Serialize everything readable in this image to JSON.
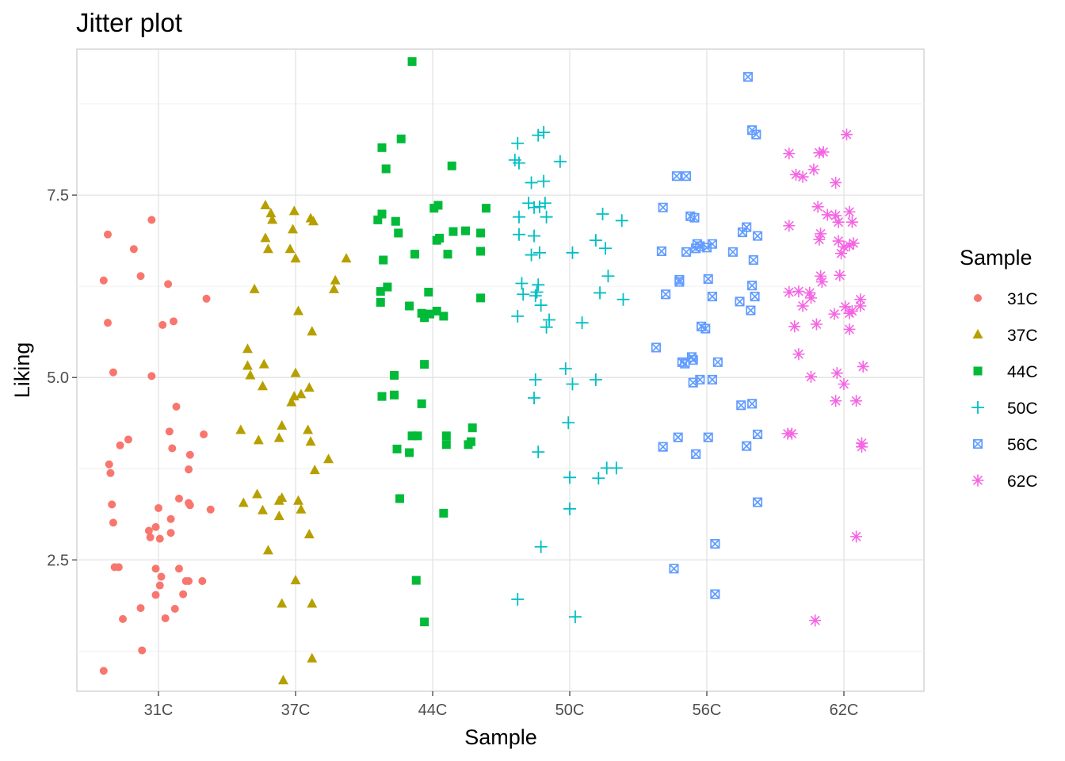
{
  "chart_data": {
    "type": "scatter",
    "title": "Jitter plot",
    "xlabel": "Sample",
    "ylabel": "Liking",
    "categories": [
      "31C",
      "37C",
      "44C",
      "50C",
      "56C",
      "62C"
    ],
    "ylim": [
      0.7,
      9.5
    ],
    "yticks": [
      2.5,
      5.0,
      7.5
    ],
    "ytick_labels": [
      "2.5",
      "5.0",
      "7.5"
    ],
    "grid": true,
    "legend": {
      "title": "Sample",
      "position": "right"
    },
    "series": [
      {
        "name": "31C",
        "color": "#F8766D",
        "shape": "circle",
        "points": [
          [
            -0.4,
            6.33
          ],
          [
            -0.37,
            6.96
          ],
          [
            -0.37,
            5.75
          ],
          [
            -0.33,
            5.07
          ],
          [
            -0.18,
            6.76
          ],
          [
            -0.13,
            6.39
          ],
          [
            -0.05,
            7.16
          ],
          [
            0.07,
            6.28
          ],
          [
            0.11,
            5.77
          ],
          [
            0.35,
            6.08
          ],
          [
            0.03,
            5.72
          ],
          [
            -0.05,
            5.02
          ],
          [
            -0.36,
            3.81
          ],
          [
            -0.35,
            3.69
          ],
          [
            -0.34,
            3.26
          ],
          [
            -0.33,
            3.01
          ],
          [
            -0.28,
            4.07
          ],
          [
            -0.22,
            4.15
          ],
          [
            -0.32,
            2.4
          ],
          [
            -0.29,
            2.4
          ],
          [
            -0.26,
            1.69
          ],
          [
            -0.4,
            0.98
          ],
          [
            -0.12,
            1.26
          ],
          [
            -0.13,
            1.84
          ],
          [
            -0.07,
            2.9
          ],
          [
            -0.06,
            2.81
          ],
          [
            -0.02,
            2.95
          ],
          [
            0.0,
            3.21
          ],
          [
            0.01,
            2.79
          ],
          [
            -0.02,
            2.38
          ],
          [
            0.02,
            2.27
          ],
          [
            0.01,
            2.15
          ],
          [
            -0.02,
            2.02
          ],
          [
            0.05,
            1.7
          ],
          [
            0.09,
            2.87
          ],
          [
            0.09,
            3.06
          ],
          [
            0.12,
            1.83
          ],
          [
            0.13,
            4.6
          ],
          [
            0.08,
            4.26
          ],
          [
            0.1,
            4.03
          ],
          [
            0.15,
            3.34
          ],
          [
            0.15,
            2.38
          ],
          [
            0.18,
            2.03
          ],
          [
            0.2,
            2.21
          ],
          [
            0.22,
            2.21
          ],
          [
            0.22,
            3.28
          ],
          [
            0.23,
            3.25
          ],
          [
            0.22,
            3.74
          ],
          [
            0.23,
            3.94
          ],
          [
            0.33,
            4.22
          ],
          [
            0.32,
            2.21
          ],
          [
            0.38,
            3.19
          ]
        ]
      },
      {
        "name": "37C",
        "color": "#B79F00",
        "shape": "triangle",
        "points": [
          [
            -0.4,
            4.28
          ],
          [
            -0.35,
            5.39
          ],
          [
            -0.35,
            5.16
          ],
          [
            -0.33,
            5.03
          ],
          [
            -0.3,
            6.21
          ],
          [
            -0.27,
            4.14
          ],
          [
            -0.24,
            4.88
          ],
          [
            -0.23,
            5.18
          ],
          [
            -0.22,
            6.91
          ],
          [
            -0.22,
            7.36
          ],
          [
            -0.2,
            6.76
          ],
          [
            -0.18,
            7.25
          ],
          [
            -0.17,
            7.16
          ],
          [
            -0.38,
            3.28
          ],
          [
            -0.28,
            3.4
          ],
          [
            -0.24,
            3.18
          ],
          [
            -0.2,
            2.63
          ],
          [
            -0.12,
            4.17
          ],
          [
            -0.1,
            4.34
          ],
          [
            -0.12,
            3.1
          ],
          [
            -0.1,
            3.35
          ],
          [
            -0.12,
            3.31
          ],
          [
            -0.1,
            1.9
          ],
          [
            -0.09,
            0.85
          ],
          [
            -0.04,
            6.76
          ],
          [
            -0.02,
            7.03
          ],
          [
            -0.01,
            7.28
          ],
          [
            0.0,
            6.63
          ],
          [
            0.02,
            5.91
          ],
          [
            0.0,
            5.06
          ],
          [
            -0.03,
            4.66
          ],
          [
            -0.01,
            4.74
          ],
          [
            0.04,
            4.77
          ],
          [
            0.0,
            2.22
          ],
          [
            0.02,
            3.31
          ],
          [
            0.04,
            3.19
          ],
          [
            0.11,
            7.18
          ],
          [
            0.13,
            7.14
          ],
          [
            0.12,
            5.63
          ],
          [
            0.1,
            4.86
          ],
          [
            0.11,
            4.12
          ],
          [
            0.09,
            4.28
          ],
          [
            0.14,
            3.73
          ],
          [
            0.24,
            3.88
          ],
          [
            0.1,
            2.85
          ],
          [
            0.12,
            1.9
          ],
          [
            0.12,
            1.15
          ],
          [
            0.28,
            6.21
          ],
          [
            0.29,
            6.33
          ],
          [
            0.37,
            6.63
          ]
        ]
      },
      {
        "name": "44C",
        "color": "#00BA38",
        "shape": "square",
        "points": [
          [
            -0.4,
            7.16
          ],
          [
            -0.37,
            7.24
          ],
          [
            -0.36,
            6.61
          ],
          [
            -0.33,
            6.24
          ],
          [
            -0.38,
            6.03
          ],
          [
            -0.38,
            6.18
          ],
          [
            -0.34,
            7.86
          ],
          [
            -0.37,
            8.15
          ],
          [
            -0.27,
            7.14
          ],
          [
            -0.25,
            6.98
          ],
          [
            -0.23,
            8.27
          ],
          [
            -0.15,
            9.33
          ],
          [
            -0.13,
            6.69
          ],
          [
            -0.37,
            4.74
          ],
          [
            -0.28,
            4.76
          ],
          [
            -0.28,
            5.03
          ],
          [
            -0.26,
            4.02
          ],
          [
            -0.24,
            3.34
          ],
          [
            -0.17,
            3.97
          ],
          [
            -0.15,
            4.2
          ],
          [
            -0.11,
            4.2
          ],
          [
            -0.12,
            2.22
          ],
          [
            -0.06,
            1.65
          ],
          [
            -0.08,
            4.64
          ],
          [
            -0.06,
            5.18
          ],
          [
            -0.17,
            5.98
          ],
          [
            -0.08,
            5.88
          ],
          [
            -0.06,
            5.82
          ],
          [
            -0.03,
            6.17
          ],
          [
            -0.02,
            5.87
          ],
          [
            0.03,
            5.91
          ],
          [
            0.08,
            5.84
          ],
          [
            0.14,
            7.9
          ],
          [
            0.01,
            7.32
          ],
          [
            0.04,
            7.36
          ],
          [
            0.03,
            6.88
          ],
          [
            0.05,
            6.91
          ],
          [
            0.11,
            6.69
          ],
          [
            0.15,
            7.0
          ],
          [
            0.24,
            7.01
          ],
          [
            0.1,
            4.2
          ],
          [
            0.1,
            4.08
          ],
          [
            0.26,
            4.08
          ],
          [
            0.28,
            4.12
          ],
          [
            0.29,
            4.31
          ],
          [
            0.35,
            6.98
          ],
          [
            0.35,
            6.73
          ],
          [
            0.35,
            6.09
          ],
          [
            0.39,
            7.32
          ],
          [
            0.08,
            3.14
          ]
        ]
      },
      {
        "name": "50C",
        "color": "#00BFC4",
        "shape": "plus",
        "points": [
          [
            -0.4,
            7.98
          ],
          [
            -0.38,
            8.21
          ],
          [
            -0.37,
            7.94
          ],
          [
            -0.37,
            6.96
          ],
          [
            -0.37,
            7.2
          ],
          [
            -0.35,
            6.29
          ],
          [
            -0.34,
            6.14
          ],
          [
            -0.38,
            5.84
          ],
          [
            -0.3,
            7.39
          ],
          [
            -0.28,
            7.67
          ],
          [
            -0.28,
            6.68
          ],
          [
            -0.26,
            7.33
          ],
          [
            -0.26,
            6.94
          ],
          [
            -0.23,
            8.32
          ],
          [
            -0.19,
            8.36
          ],
          [
            -0.19,
            7.69
          ],
          [
            -0.22,
            7.34
          ],
          [
            -0.18,
            7.39
          ],
          [
            -0.17,
            7.2
          ],
          [
            -0.22,
            6.71
          ],
          [
            -0.23,
            6.27
          ],
          [
            -0.25,
            6.12
          ],
          [
            -0.24,
            6.17
          ],
          [
            -0.21,
            5.99
          ],
          [
            -0.17,
            5.69
          ],
          [
            -0.15,
            5.79
          ],
          [
            -0.07,
            7.96
          ],
          [
            -0.25,
            4.97
          ],
          [
            -0.26,
            4.72
          ],
          [
            -0.23,
            3.98
          ],
          [
            -0.21,
            2.68
          ],
          [
            -0.38,
            1.96
          ],
          [
            -0.03,
            5.12
          ],
          [
            -0.01,
            4.38
          ],
          [
            0.0,
            3.63
          ],
          [
            0.0,
            3.2
          ],
          [
            0.02,
            6.71
          ],
          [
            0.02,
            4.91
          ],
          [
            0.04,
            1.72
          ],
          [
            0.09,
            5.75
          ],
          [
            0.19,
            6.88
          ],
          [
            0.22,
            6.16
          ],
          [
            0.24,
            7.24
          ],
          [
            0.26,
            6.77
          ],
          [
            0.28,
            6.39
          ],
          [
            0.38,
            7.15
          ],
          [
            0.39,
            6.07
          ],
          [
            0.19,
            4.97
          ],
          [
            0.21,
            3.62
          ],
          [
            0.27,
            3.76
          ],
          [
            0.34,
            3.76
          ]
        ]
      },
      {
        "name": "56C",
        "color": "#619CFF",
        "shape": "squarecross",
        "points": [
          [
            -0.37,
            5.41
          ],
          [
            -0.32,
            7.33
          ],
          [
            -0.33,
            6.73
          ],
          [
            -0.3,
            6.14
          ],
          [
            -0.22,
            7.76
          ],
          [
            -0.2,
            6.31
          ],
          [
            -0.2,
            6.34
          ],
          [
            -0.18,
            5.21
          ],
          [
            -0.16,
            5.19
          ],
          [
            -0.15,
            7.76
          ],
          [
            -0.15,
            6.72
          ],
          [
            -0.12,
            7.21
          ],
          [
            -0.09,
            7.19
          ],
          [
            -0.32,
            4.05
          ],
          [
            -0.24,
            2.38
          ],
          [
            -0.21,
            4.18
          ],
          [
            -0.1,
            5.24
          ],
          [
            -0.11,
            5.28
          ],
          [
            -0.1,
            4.93
          ],
          [
            -0.08,
            3.95
          ],
          [
            -0.05,
            4.97
          ],
          [
            -0.08,
            6.77
          ],
          [
            -0.07,
            6.83
          ],
          [
            -0.05,
            6.8
          ],
          [
            0.0,
            6.78
          ],
          [
            0.04,
            6.83
          ],
          [
            -0.04,
            5.7
          ],
          [
            -0.01,
            5.67
          ],
          [
            0.01,
            6.35
          ],
          [
            0.04,
            6.11
          ],
          [
            0.04,
            4.97
          ],
          [
            0.01,
            4.18
          ],
          [
            0.08,
            5.21
          ],
          [
            0.06,
            2.72
          ],
          [
            0.06,
            2.03
          ],
          [
            0.19,
            6.72
          ],
          [
            0.24,
            6.04
          ],
          [
            0.26,
            6.99
          ],
          [
            0.29,
            7.06
          ],
          [
            0.3,
            9.12
          ],
          [
            0.33,
            8.39
          ],
          [
            0.36,
            8.33
          ],
          [
            0.37,
            6.94
          ],
          [
            0.34,
            6.61
          ],
          [
            0.33,
            6.26
          ],
          [
            0.35,
            6.11
          ],
          [
            0.32,
            5.92
          ],
          [
            0.25,
            4.62
          ],
          [
            0.33,
            4.64
          ],
          [
            0.29,
            4.06
          ],
          [
            0.37,
            4.22
          ],
          [
            0.37,
            3.29
          ]
        ]
      },
      {
        "name": "62C",
        "color": "#F564E3",
        "shape": "star",
        "points": [
          [
            -0.4,
            8.07
          ],
          [
            -0.35,
            7.78
          ],
          [
            -0.3,
            7.75
          ],
          [
            -0.22,
            7.85
          ],
          [
            -0.4,
            7.08
          ],
          [
            -0.4,
            6.17
          ],
          [
            -0.36,
            5.7
          ],
          [
            -0.33,
            6.18
          ],
          [
            -0.3,
            5.98
          ],
          [
            -0.25,
            6.16
          ],
          [
            -0.24,
            6.09
          ],
          [
            -0.18,
            6.89
          ],
          [
            -0.2,
            5.73
          ],
          [
            -0.33,
            5.32
          ],
          [
            -0.24,
            5.01
          ],
          [
            -0.41,
            4.23
          ],
          [
            -0.38,
            4.23
          ],
          [
            -0.21,
            1.67
          ],
          [
            -0.18,
            8.08
          ],
          [
            -0.15,
            8.09
          ],
          [
            -0.19,
            7.34
          ],
          [
            -0.17,
            6.39
          ],
          [
            -0.16,
            6.31
          ],
          [
            -0.17,
            6.97
          ],
          [
            -0.12,
            7.23
          ],
          [
            -0.06,
            7.67
          ],
          [
            -0.06,
            7.22
          ],
          [
            -0.04,
            7.13
          ],
          [
            -0.04,
            6.87
          ],
          [
            -0.03,
            6.4
          ],
          [
            -0.02,
            6.7
          ],
          [
            0.0,
            6.79
          ],
          [
            0.04,
            6.81
          ],
          [
            0.07,
            6.84
          ],
          [
            0.04,
            7.27
          ],
          [
            0.06,
            7.13
          ],
          [
            0.02,
            8.33
          ],
          [
            -0.07,
            5.87
          ],
          [
            0.01,
            5.97
          ],
          [
            0.04,
            5.88
          ],
          [
            0.06,
            5.91
          ],
          [
            0.04,
            5.66
          ],
          [
            -0.05,
            5.06
          ],
          [
            0.0,
            4.91
          ],
          [
            -0.06,
            4.68
          ],
          [
            0.09,
            4.68
          ],
          [
            0.14,
            5.15
          ],
          [
            0.12,
            6.07
          ],
          [
            0.12,
            5.98
          ],
          [
            0.13,
            4.1
          ],
          [
            0.13,
            4.05
          ],
          [
            0.09,
            2.82
          ]
        ]
      }
    ]
  }
}
